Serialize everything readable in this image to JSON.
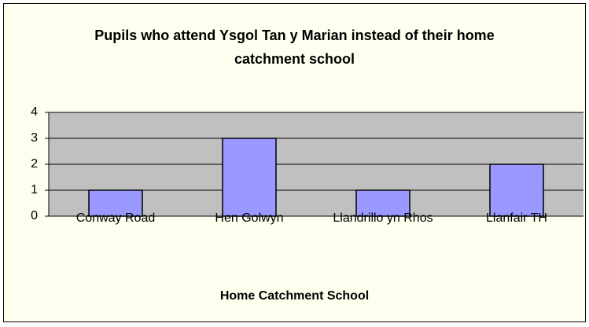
{
  "chart_data": {
    "type": "bar",
    "title": "Pupils who attend Ysgol Tan y Marian instead of their home catchment school",
    "x_label": "Home Catchment School",
    "categories": [
      "Conway Road",
      "Hen Golwyn",
      "Llandrillo yn Rhos",
      "Llanfair TH"
    ],
    "values": [
      1,
      3,
      1,
      2
    ],
    "color": "#9999ff",
    "ylim": [
      0,
      4
    ],
    "yticks": [
      0,
      1,
      2,
      3,
      4
    ],
    "grid": true
  }
}
